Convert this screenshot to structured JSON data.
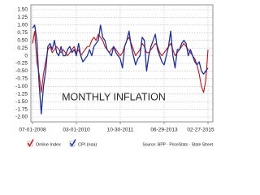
{
  "chart_data": {
    "type": "line",
    "annotation": "MONTHLY INFLATION",
    "source": "Source: BPP · PriceStats · State Street",
    "categories": [
      "07-01-2008",
      null,
      null,
      null,
      null,
      null,
      null,
      null,
      null,
      null,
      null,
      null,
      null,
      null,
      null,
      null,
      null,
      null,
      null,
      null,
      "03-01-2010",
      null,
      null,
      null,
      null,
      null,
      null,
      null,
      null,
      null,
      null,
      null,
      null,
      null,
      null,
      null,
      null,
      null,
      null,
      null,
      "10-30-2011",
      null,
      null,
      null,
      null,
      null,
      null,
      null,
      null,
      null,
      null,
      null,
      null,
      null,
      null,
      null,
      null,
      null,
      null,
      null,
      "06-29-2013",
      null,
      null,
      null,
      null,
      null,
      null,
      null,
      null,
      null,
      null,
      null,
      null,
      null,
      null,
      null,
      null,
      null,
      null,
      null,
      "02-27-2015"
    ],
    "series": [
      {
        "name": "Online Index",
        "color": "#cc1111",
        "values": [
          0.4,
          0.8,
          -0.2,
          -0.6,
          -1.2,
          -0.6,
          -0.2,
          0.2,
          0.3,
          0.1,
          0.2,
          0.3,
          0.2,
          0.1,
          0.2,
          0.1,
          0.0,
          0.1,
          0.2,
          0.3,
          0.1,
          0.2,
          0.0,
          0.1,
          0.2,
          0.3,
          0.3,
          0.5,
          0.6,
          0.5,
          0.7,
          0.6,
          0.5,
          0.3,
          0.2,
          0.1,
          0.2,
          0.3,
          0.2,
          0.1,
          0.0,
          0.1,
          0.3,
          0.5,
          0.6,
          0.4,
          0.2,
          0.0,
          0.1,
          0.2,
          0.4,
          0.3,
          0.1,
          0.1,
          0.2,
          0.3,
          0.4,
          0.3,
          0.1,
          0.0,
          0.1,
          0.2,
          0.3,
          0.4,
          0.2,
          0.0,
          0.1,
          0.2,
          0.3,
          0.4,
          0.3,
          0.2,
          0.1,
          0.0,
          -0.1,
          -0.3,
          -0.6,
          -1.0,
          -1.2,
          -0.8,
          0.2
        ]
      },
      {
        "name": "CPI (nsa)",
        "color": "#1a2fa0",
        "values": [
          0.9,
          1.0,
          0.5,
          -0.9,
          -1.9,
          -1.0,
          -0.5,
          0.3,
          0.4,
          0.2,
          0.5,
          0.1,
          0.0,
          0.3,
          0.0,
          0.0,
          0.2,
          0.3,
          0.1,
          0.2,
          0.0,
          0.4,
          0.0,
          -0.2,
          -0.1,
          0.0,
          0.2,
          0.0,
          0.3,
          0.4,
          0.5,
          1.0,
          0.6,
          0.5,
          0.2,
          0.1,
          0.0,
          0.3,
          0.1,
          0.0,
          -0.1,
          -0.4,
          0.3,
          0.5,
          0.8,
          0.3,
          0.0,
          -0.3,
          -0.1,
          0.0,
          0.6,
          0.5,
          -0.5,
          0.0,
          0.3,
          0.5,
          0.7,
          0.2,
          0.0,
          -0.2,
          -0.3,
          0.0,
          0.3,
          0.8,
          0.0,
          -0.4,
          0.2,
          0.2,
          0.4,
          0.5,
          0.4,
          0.0,
          0.2,
          0.0,
          -0.2,
          -0.3,
          -0.2,
          -0.5,
          -0.6,
          -0.5,
          -0.4
        ]
      }
    ],
    "ylim": [
      -2,
      1.5
    ],
    "yticks": [
      {
        "value": -2,
        "label": "-2.00"
      },
      -1.75,
      {
        "value": -1.5,
        "label": "-1.50"
      },
      -1.25,
      {
        "value": -1,
        "label": "-1.00"
      },
      -0.75,
      {
        "value": -0.5,
        "label": "-0.50"
      },
      -0.25,
      0,
      0.25,
      {
        "value": 0.5,
        "label": "0.50"
      },
      0.75,
      {
        "value": 1,
        "label": "1.00"
      },
      1.25,
      {
        "value": 1.5,
        "label": "1.50"
      }
    ],
    "grid": true
  }
}
